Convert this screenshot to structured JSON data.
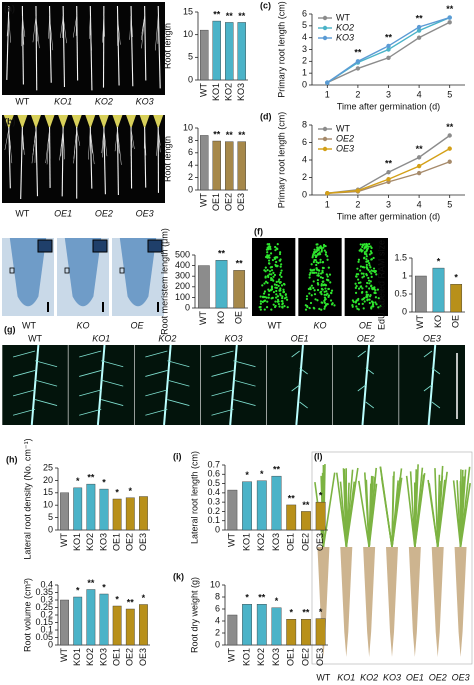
{
  "photos": [
    {
      "letter": "(a)",
      "labels": [
        "WT",
        "KO1",
        "KO2",
        "KO3"
      ]
    },
    {
      "letter": "(b)",
      "labels": [
        "WT",
        "OE1",
        "OE2",
        "OE3"
      ]
    },
    {
      "labels": [
        "WT",
        "KO",
        "OE"
      ]
    },
    {
      "letter": "(f)",
      "labels": [
        "WT",
        "KO",
        "OE"
      ]
    },
    {
      "letter": "(g)",
      "labels": [
        "WT",
        "KO1",
        "KO2",
        "KO3",
        "OE1",
        "OE2",
        "OE3"
      ]
    },
    {
      "letter": "(l)",
      "labels": [
        "WT",
        "KO1",
        "KO2",
        "KO3",
        "OE1",
        "OE2",
        "OE3"
      ]
    }
  ],
  "chart_data": [
    {
      "type": "bar",
      "ylabel": "Root length",
      "categories": [
        "WT",
        "KO1",
        "KO2",
        "KO3"
      ],
      "values": [
        11,
        13,
        12.7,
        12.7
      ],
      "colors": [
        "#8c8c8c",
        "#4bb3c8",
        "#4bb3c8",
        "#4bb3c8"
      ],
      "significance": [
        null,
        "**",
        "**",
        "**"
      ],
      "ylim": [
        0,
        15
      ],
      "yticks": [
        0,
        5,
        10,
        15
      ]
    },
    {
      "type": "line",
      "panel": "(c)",
      "xlabel": "Time after germination (d)",
      "ylabel": "Primary root length (cm)",
      "x": [
        1,
        2,
        3,
        4,
        5
      ],
      "series": [
        {
          "name": "WT",
          "color": "#8c8c8c",
          "values": [
            0.2,
            1.4,
            2.3,
            4.0,
            5.3
          ]
        },
        {
          "name": "KO2",
          "color": "#4bb3c8",
          "values": [
            0.2,
            1.9,
            3.0,
            4.6,
            5.7
          ]
        },
        {
          "name": "KO3",
          "color": "#5b9bd5",
          "values": [
            0.2,
            2.0,
            3.3,
            4.9,
            5.7
          ]
        }
      ],
      "significance": [
        null,
        "**",
        "**",
        "**",
        "**"
      ],
      "xlim": [
        0.5,
        5.5
      ],
      "xticks": [
        1,
        2,
        3,
        4,
        5
      ],
      "ylim": [
        0,
        6
      ],
      "yticks": [
        0,
        1,
        2,
        3,
        4,
        5,
        6
      ]
    },
    {
      "type": "bar",
      "ylabel": "Root length",
      "categories": [
        "WT",
        "OE1",
        "OE2",
        "OE3"
      ],
      "values": [
        8.8,
        7.9,
        7.8,
        7.8
      ],
      "colors": [
        "#8c8c8c",
        "#a6884a",
        "#a6884a",
        "#a6884a"
      ],
      "significance": [
        null,
        "**",
        "**",
        "**"
      ],
      "ylim": [
        0,
        10
      ],
      "yticks": [
        0,
        2,
        4,
        6,
        8,
        10
      ]
    },
    {
      "type": "line",
      "panel": "(d)",
      "xlabel": "Time after germination (d)",
      "ylabel": "Primary root length (cm)",
      "x": [
        1,
        2,
        3,
        4,
        5
      ],
      "series": [
        {
          "name": "WT",
          "color": "#8c8c8c",
          "values": [
            0.2,
            0.6,
            2.6,
            4.3,
            6.8
          ]
        },
        {
          "name": "OE2",
          "color": "#a68a6a",
          "values": [
            0.2,
            0.4,
            1.5,
            2.5,
            3.8
          ]
        },
        {
          "name": "OE3",
          "color": "#d4a017",
          "values": [
            0.2,
            0.5,
            1.8,
            3.3,
            5.3
          ]
        }
      ],
      "significance": [
        null,
        null,
        "**",
        "**",
        "**"
      ],
      "xlim": [
        0.5,
        5.5
      ],
      "xticks": [
        1,
        2,
        3,
        4,
        5
      ],
      "ylim": [
        0,
        8
      ],
      "yticks": [
        0,
        2,
        4,
        6,
        8
      ]
    },
    {
      "type": "bar",
      "ylabel": "Root meristem length (μm)",
      "categories": [
        "WT",
        "KO",
        "OE"
      ],
      "values": [
        400,
        450,
        355
      ],
      "colors": [
        "#8c8c8c",
        "#4bb3c8",
        "#a6884a"
      ],
      "significance": [
        null,
        "**",
        "**"
      ],
      "ylim": [
        0,
        500
      ],
      "yticks": [
        0,
        100,
        200,
        300,
        400,
        500
      ]
    },
    {
      "type": "bar",
      "ylabel": "EdU labeled RAM size",
      "categories": [
        "WT",
        "KO",
        "OE"
      ],
      "values": [
        1.0,
        1.22,
        0.77
      ],
      "colors": [
        "#8c8c8c",
        "#4bb3c8",
        "#b8901a"
      ],
      "significance": [
        null,
        "*",
        "*"
      ],
      "ylim": [
        0,
        1.5
      ],
      "yticks": [
        0,
        0.5,
        1,
        1.5
      ]
    },
    {
      "type": "bar",
      "panel": "(h)",
      "ylabel": "Lateral root density (No. cm⁻¹)",
      "categories": [
        "WT",
        "KO1",
        "KO2",
        "KO3",
        "OE1",
        "OE2",
        "OE3"
      ],
      "values": [
        15,
        17,
        18.5,
        16.5,
        12.5,
        13,
        13.5
      ],
      "colors": [
        "#8c8c8c",
        "#4bb3c8",
        "#4bb3c8",
        "#4bb3c8",
        "#b8901a",
        "#b8901a",
        "#b8901a"
      ],
      "significance": [
        null,
        "*",
        "**",
        "*",
        "*",
        "*",
        null
      ],
      "ylim": [
        0,
        25
      ],
      "yticks": [
        0,
        5,
        10,
        15,
        20,
        25
      ]
    },
    {
      "type": "bar",
      "panel": "(i)",
      "ylabel": "Lateral root length (cm)",
      "categories": [
        "WT",
        "KO1",
        "KO2",
        "KO3",
        "OE1",
        "OE2",
        "OE3"
      ],
      "values": [
        0.43,
        0.52,
        0.53,
        0.58,
        0.27,
        0.2,
        0.3
      ],
      "colors": [
        "#8c8c8c",
        "#4bb3c8",
        "#4bb3c8",
        "#4bb3c8",
        "#b8901a",
        "#b8901a",
        "#b8901a"
      ],
      "significance": [
        null,
        "*",
        "*",
        "**",
        "**",
        "**",
        "*"
      ],
      "ylim": [
        0,
        0.7
      ],
      "yticks": [
        0,
        0.1,
        0.2,
        0.3,
        0.4,
        0.5,
        0.6,
        0.7
      ]
    },
    {
      "type": "bar",
      "ylabel": "Root volume (cm³)",
      "categories": [
        "WT",
        "KO1",
        "KO2",
        "KO3",
        "OE1",
        "OE2",
        "OE3"
      ],
      "values": [
        0.3,
        0.32,
        0.37,
        0.34,
        0.26,
        0.24,
        0.27
      ],
      "colors": [
        "#8c8c8c",
        "#4bb3c8",
        "#4bb3c8",
        "#4bb3c8",
        "#b8901a",
        "#b8901a",
        "#b8901a"
      ],
      "significance": [
        null,
        "*",
        "**",
        "*",
        "*",
        "**",
        "*"
      ],
      "ylim": [
        0,
        0.4
      ],
      "yticks": [
        0,
        0.05,
        0.1,
        0.15,
        0.2,
        0.25,
        0.3,
        0.35,
        0.4
      ]
    },
    {
      "type": "bar",
      "panel": "(k)",
      "ylabel": "Root dry weight (g)",
      "categories": [
        "WT",
        "KO1",
        "KO2",
        "KO3",
        "OE1",
        "OE2",
        "OE3"
      ],
      "values": [
        5,
        6.8,
        6.8,
        6.2,
        4.3,
        4.3,
        4.4
      ],
      "colors": [
        "#8c8c8c",
        "#4bb3c8",
        "#4bb3c8",
        "#4bb3c8",
        "#b8901a",
        "#b8901a",
        "#b8901a"
      ],
      "significance": [
        null,
        "*",
        "**",
        "*",
        "*",
        "**",
        "*"
      ],
      "ylim": [
        0,
        10
      ],
      "yticks": [
        0,
        2,
        4,
        6,
        8,
        10
      ]
    }
  ]
}
